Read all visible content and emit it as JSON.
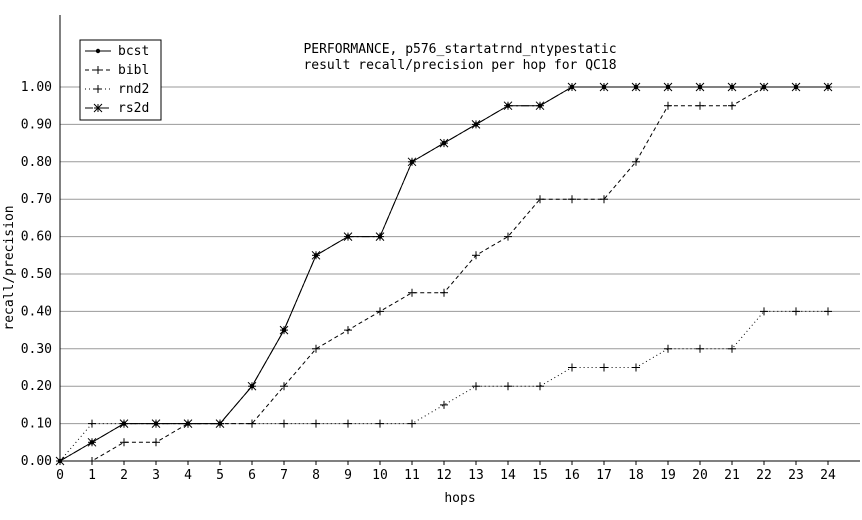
{
  "chart_data": {
    "type": "line",
    "title": "PERFORMANCE, p576_startatrnd_ntypestatic",
    "subtitle": "result recall/precision per hop for QC18",
    "xlabel": "hops",
    "ylabel": "recall/precision",
    "xlim": [
      0,
      24
    ],
    "ylim": [
      0,
      1
    ],
    "grid": true,
    "legend_position": "top-left",
    "x": [
      0,
      1,
      2,
      3,
      4,
      5,
      6,
      7,
      8,
      9,
      10,
      11,
      12,
      13,
      14,
      15,
      16,
      17,
      18,
      19,
      20,
      21,
      22,
      23,
      24
    ],
    "x_ticks": [
      "0",
      "1",
      "2",
      "3",
      "4",
      "5",
      "6",
      "7",
      "8",
      "9",
      "10",
      "11",
      "12",
      "13",
      "14",
      "15",
      "16",
      "17",
      "18",
      "19",
      "20",
      "21",
      "22",
      "23",
      "24"
    ],
    "y_ticks": [
      "0.00",
      "0.10",
      "0.20",
      "0.30",
      "0.40",
      "0.50",
      "0.60",
      "0.70",
      "0.80",
      "0.90",
      "1.00"
    ],
    "series": [
      {
        "name": "bcst",
        "marker": "dot",
        "dash": "solid",
        "values": [
          0,
          0.05,
          0.1,
          0.1,
          0.1,
          0.1,
          0.2,
          0.35,
          0.55,
          0.6,
          0.6,
          0.8,
          0.85,
          0.9,
          0.95,
          0.95,
          1.0,
          1.0,
          1.0,
          1.0,
          1.0,
          1.0,
          1.0,
          1.0,
          1.0
        ]
      },
      {
        "name": "bibl",
        "marker": "plus",
        "dash": "dashed",
        "values": [
          0,
          0,
          0.05,
          0.05,
          0.1,
          0.1,
          0.1,
          0.2,
          0.3,
          0.35,
          0.4,
          0.45,
          0.45,
          0.55,
          0.6,
          0.7,
          0.7,
          0.7,
          0.8,
          0.95,
          0.95,
          0.95,
          1.0,
          1.0,
          1.0
        ]
      },
      {
        "name": "rnd2",
        "marker": "plus",
        "dash": "dotted",
        "values": [
          0,
          0.1,
          0.1,
          0.1,
          0.1,
          0.1,
          0.1,
          0.1,
          0.1,
          0.1,
          0.1,
          0.1,
          0.15,
          0.2,
          0.2,
          0.2,
          0.25,
          0.25,
          0.25,
          0.3,
          0.3,
          0.3,
          0.4,
          0.4,
          0.4
        ]
      },
      {
        "name": "rs2d",
        "marker": "star",
        "dash": "dashdot",
        "values": [
          0,
          0.05,
          0.1,
          0.1,
          0.1,
          0.1,
          0.2,
          0.35,
          0.55,
          0.6,
          0.6,
          0.8,
          0.85,
          0.9,
          0.95,
          0.95,
          1.0,
          1.0,
          1.0,
          1.0,
          1.0,
          1.0,
          1.0,
          1.0,
          1.0
        ]
      }
    ]
  }
}
